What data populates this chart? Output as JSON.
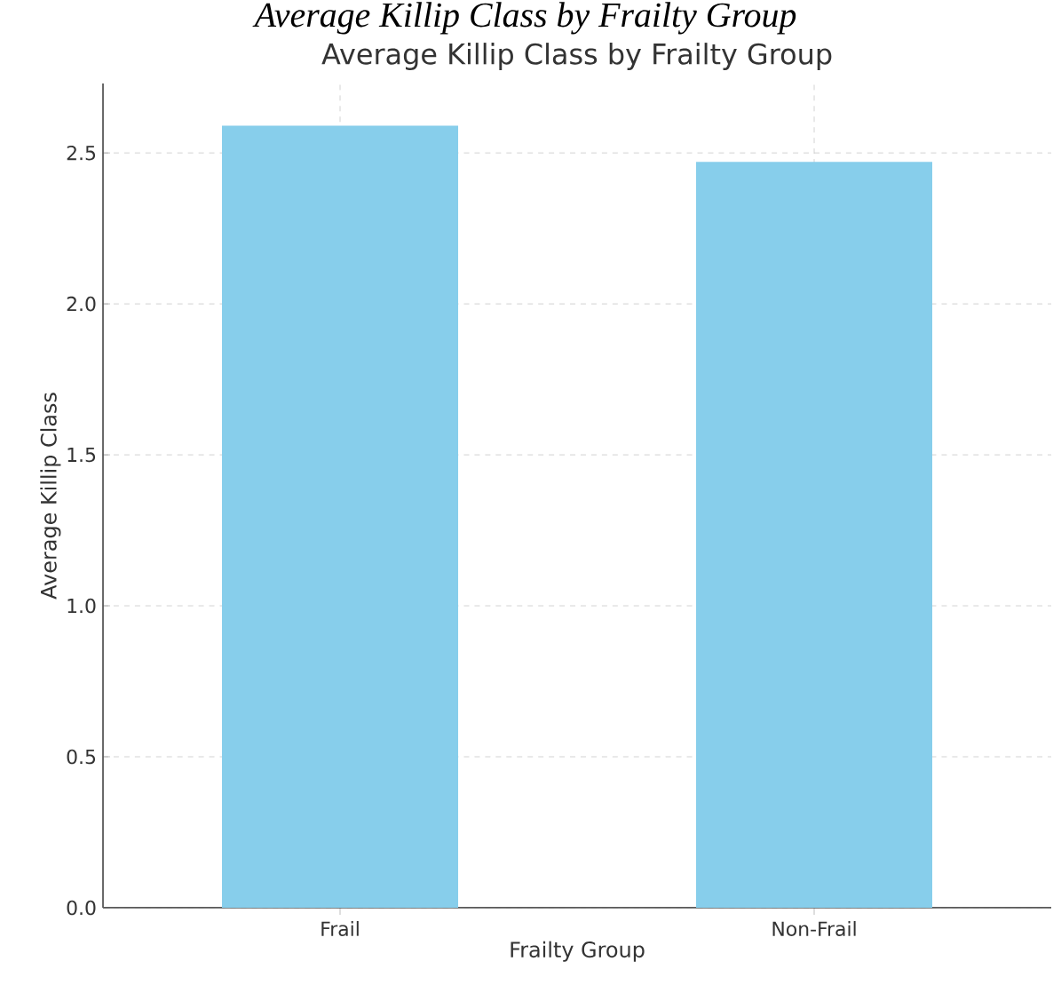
{
  "chart_data": {
    "type": "bar",
    "title": "Average Killip Class by Frailty Group",
    "xlabel": "Frailty Group",
    "ylabel": "Average Killip Class",
    "categories": [
      "Frail",
      "Non-Frail"
    ],
    "values": [
      2.59,
      2.47
    ],
    "color": "#87ceeb",
    "ylim": [
      0,
      2.73
    ],
    "yticks": [
      {
        "value": 0,
        "label": "0.0"
      },
      0.5,
      {
        "value": 1,
        "label": "1.0"
      },
      1.5,
      {
        "value": 2,
        "label": "2.0"
      },
      2.5
    ],
    "grid": true,
    "annotations": [
      "Average Killip Class by Frailty Group"
    ]
  }
}
